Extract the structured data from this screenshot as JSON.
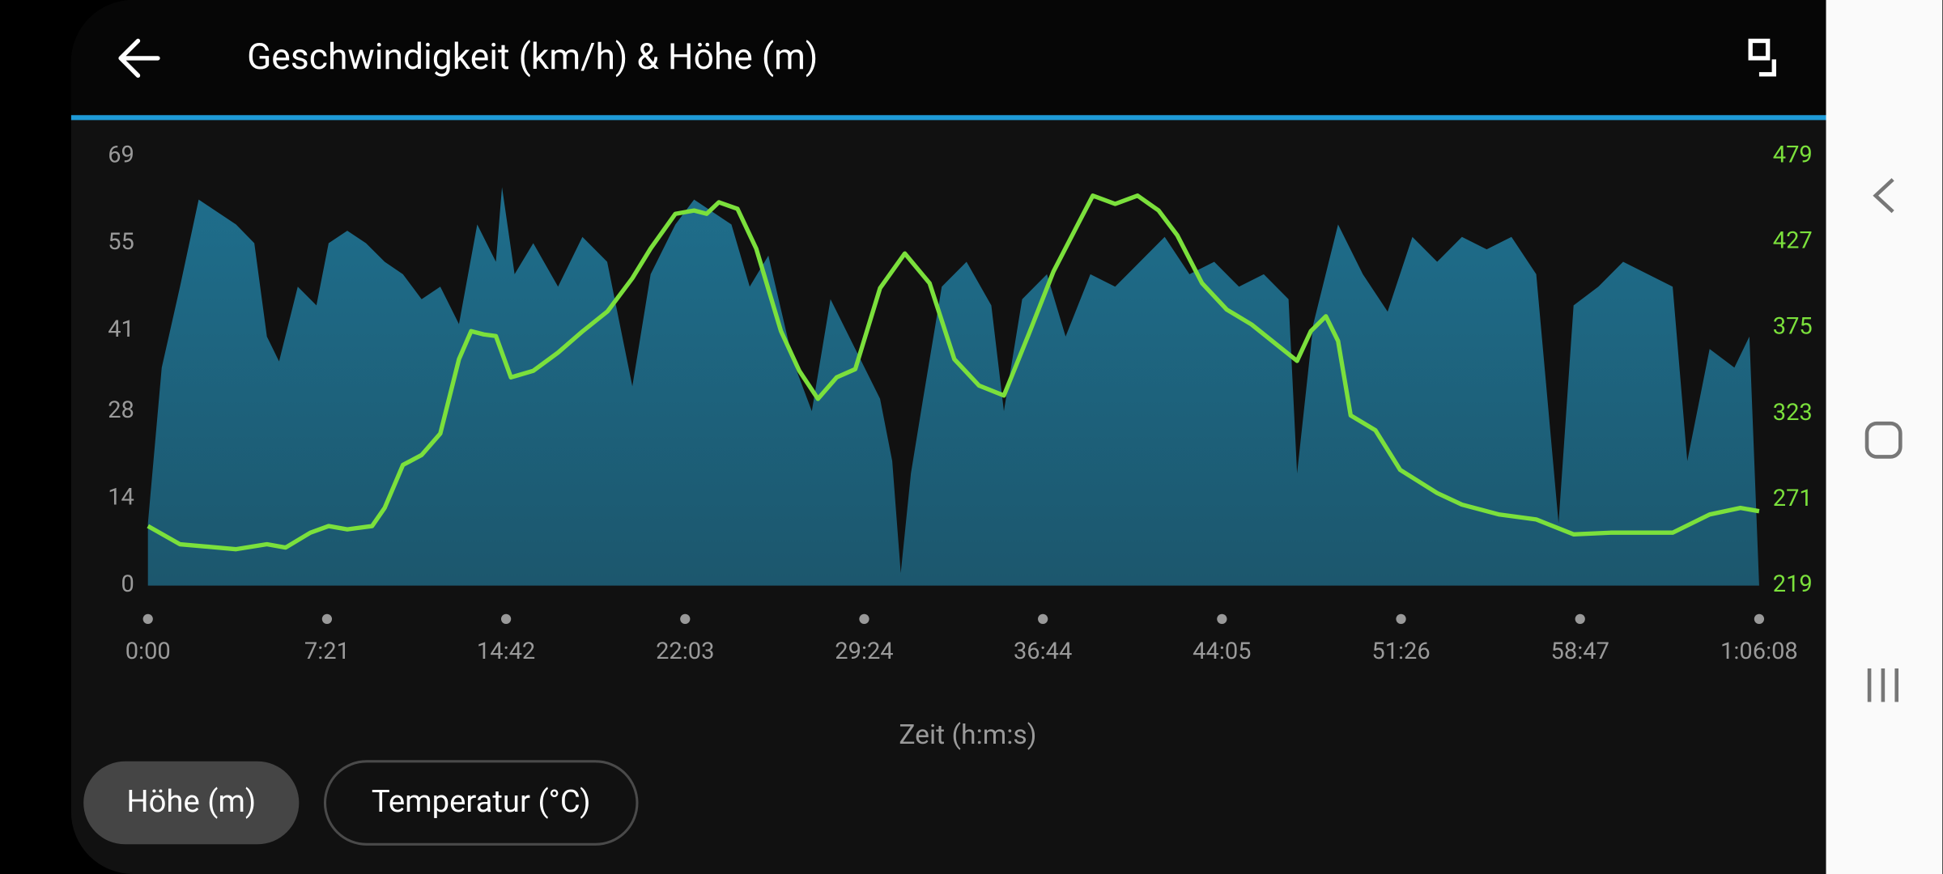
{
  "chart_data": {
    "type": "area-line",
    "title": "Geschwindigkeit (km/h) & Höhe (m)",
    "xlabel": "Zeit (h:m:s)",
    "xlim": [
      0,
      3968
    ],
    "xticks": [
      {
        "value": 0,
        "label": "0:00"
      },
      {
        "value": 441,
        "label": "7:21"
      },
      {
        "value": 882,
        "label": "14:42"
      },
      {
        "value": 1323,
        "label": "22:03"
      },
      {
        "value": 1764,
        "label": "29:24"
      },
      {
        "value": 2204,
        "label": "36:44"
      },
      {
        "value": 2645,
        "label": "44:05"
      },
      {
        "value": 3086,
        "label": "51:26"
      },
      {
        "value": 3527,
        "label": "58:47"
      },
      {
        "value": 3968,
        "label": "1:06:08"
      }
    ],
    "ylim": [
      0,
      69
    ],
    "yticks": [
      0,
      14,
      28,
      41,
      55,
      69
    ],
    "y2lim": [
      219,
      479
    ],
    "y2ticks": [
      219,
      271,
      323,
      375,
      427,
      479
    ],
    "series": [
      {
        "name": "Geschwindigkeit (km/h)",
        "kind": "area",
        "color": "#1f6e8c",
        "x": [
          0,
          34,
          79,
          125,
          171,
          217,
          262,
          293,
          323,
          369,
          415,
          445,
          491,
          537,
          583,
          628,
          674,
          720,
          766,
          811,
          857,
          872,
          903,
          949,
          1010,
          1070,
          1131,
          1193,
          1238,
          1299,
          1345,
          1391,
          1437,
          1482,
          1528,
          1589,
          1635,
          1681,
          1742,
          1803,
          1833,
          1854,
          1879,
          1909,
          1955,
          2016,
          2077,
          2108,
          2153,
          2214,
          2260,
          2321,
          2382,
          2443,
          2504,
          2565,
          2626,
          2687,
          2748,
          2809,
          2830,
          2870,
          2931,
          2992,
          3053,
          3114,
          3175,
          3236,
          3297,
          3358,
          3419,
          3474,
          3511,
          3572,
          3633,
          3694,
          3755,
          3791,
          3846,
          3907,
          3944,
          3968
        ],
        "values": [
          10,
          35,
          48,
          62,
          60,
          58,
          55,
          40,
          36,
          48,
          45,
          55,
          57,
          55,
          52,
          50,
          46,
          48,
          42,
          58,
          52,
          64,
          50,
          55,
          48,
          56,
          52,
          32,
          50,
          58,
          62,
          60,
          58,
          48,
          53,
          36,
          28,
          46,
          38,
          30,
          20,
          2,
          18,
          30,
          48,
          52,
          45,
          28,
          46,
          50,
          40,
          50,
          48,
          52,
          56,
          50,
          52,
          48,
          50,
          46,
          18,
          42,
          58,
          50,
          44,
          56,
          52,
          56,
          54,
          56,
          50,
          10,
          45,
          48,
          52,
          50,
          48,
          20,
          38,
          35,
          40,
          0
        ]
      },
      {
        "name": "Höhe (m)",
        "kind": "line",
        "axis": "y2",
        "color": "#7be03c",
        "x": [
          0,
          79,
          217,
          293,
          339,
          400,
          445,
          491,
          552,
          583,
          628,
          674,
          720,
          766,
          796,
          827,
          857,
          894,
          949,
          1010,
          1071,
          1132,
          1193,
          1238,
          1299,
          1345,
          1376,
          1406,
          1452,
          1498,
          1559,
          1604,
          1650,
          1696,
          1742,
          1803,
          1864,
          1925,
          1986,
          2047,
          2108,
          2169,
          2230,
          2291,
          2327,
          2382,
          2437,
          2489,
          2535,
          2596,
          2657,
          2718,
          2779,
          2830,
          2864,
          2901,
          2931,
          2962,
          3023,
          3084,
          3175,
          3236,
          3328,
          3419,
          3511,
          3602,
          3755,
          3846,
          3922,
          3968
        ],
        "values": [
          255,
          244,
          241,
          244,
          242,
          251,
          255,
          253,
          255,
          266,
          292,
          298,
          311,
          356,
          373,
          371,
          370,
          345,
          349,
          360,
          373,
          385,
          405,
          423,
          444,
          446,
          444,
          451,
          447,
          423,
          373,
          349,
          332,
          345,
          350,
          399,
          420,
          402,
          356,
          340,
          334,
          371,
          409,
          438,
          455,
          450,
          455,
          446,
          431,
          402,
          386,
          377,
          365,
          355,
          373,
          382,
          367,
          322,
          313,
          289,
          275,
          268,
          262,
          259,
          250,
          251,
          251,
          262,
          266,
          264
        ]
      }
    ]
  },
  "buttons": [
    "Höhe (m)",
    "Temperatur (°C)"
  ]
}
